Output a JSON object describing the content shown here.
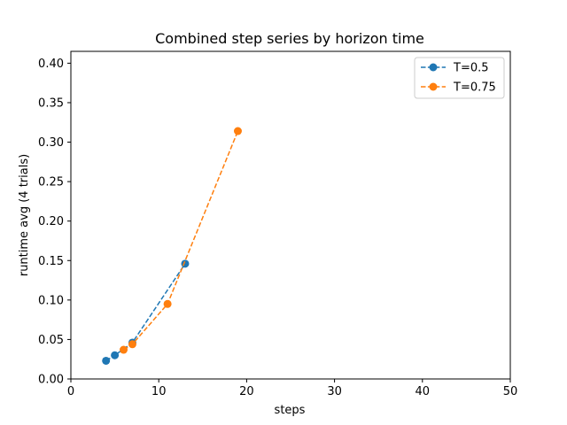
{
  "chart_data": {
    "type": "line",
    "title": "Combined step series by horizon time",
    "xlabel": "steps",
    "ylabel": "runtime avg (4 trials)",
    "xlim": [
      0,
      50
    ],
    "ylim": [
      0,
      0.415
    ],
    "xticks": [
      0,
      10,
      20,
      30,
      40,
      50
    ],
    "xtick_labels": [
      "0",
      "10",
      "20",
      "30",
      "40",
      "50"
    ],
    "yticks": [
      0.0,
      0.05,
      0.1,
      0.15,
      0.2,
      0.25,
      0.3,
      0.35,
      0.4
    ],
    "ytick_labels": [
      "0.00",
      "0.05",
      "0.10",
      "0.15",
      "0.20",
      "0.25",
      "0.30",
      "0.35",
      "0.40"
    ],
    "grid": false,
    "legend_position": "top-right",
    "series": [
      {
        "name": "T=0.5",
        "color": "#1f77b4",
        "line_style": "dashed",
        "marker": "circle",
        "x": [
          4,
          5,
          7,
          13
        ],
        "y": [
          0.023,
          0.03,
          0.046,
          0.146
        ]
      },
      {
        "name": "T=0.75",
        "color": "#ff7f0e",
        "line_style": "dashed",
        "marker": "circle",
        "x": [
          6,
          7,
          11,
          19
        ],
        "y": [
          0.037,
          0.044,
          0.095,
          0.314
        ]
      }
    ]
  }
}
